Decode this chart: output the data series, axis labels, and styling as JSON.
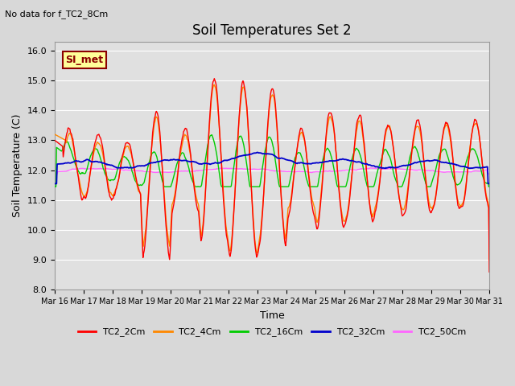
{
  "title": "Soil Temperatures Set 2",
  "subtitle": "No data for f_TC2_8Cm",
  "xlabel": "Time",
  "ylabel": "Soil Temperature (C)",
  "ylim": [
    8.0,
    16.3
  ],
  "yticks": [
    8.0,
    9.0,
    10.0,
    11.0,
    12.0,
    13.0,
    14.0,
    15.0,
    16.0
  ],
  "fig_bg_color": "#d8d8d8",
  "plot_bg_color": "#e0e0e0",
  "annotation_label": "SI_met",
  "annotation_box_color": "#ffff99",
  "annotation_box_border": "#8b0000",
  "series": {
    "TC2_2Cm": {
      "color": "#ff0000",
      "lw": 1.0
    },
    "TC2_4Cm": {
      "color": "#ff8800",
      "lw": 1.0
    },
    "TC2_16Cm": {
      "color": "#00cc00",
      "lw": 1.0
    },
    "TC2_32Cm": {
      "color": "#0000cc",
      "lw": 1.3
    },
    "TC2_50Cm": {
      "color": "#ff66ff",
      "lw": 1.0
    }
  },
  "x_tick_labels": [
    "Mar 16",
    "Mar 17",
    "Mar 18",
    "Mar 19",
    "Mar 20",
    "Mar 21",
    "Mar 22",
    "Mar 23",
    "Mar 24",
    "Mar 25",
    "Mar 26",
    "Mar 27",
    "Mar 28",
    "Mar 29",
    "Mar 30",
    "Mar 31"
  ],
  "n_days": 15,
  "pts_per_day": 48
}
